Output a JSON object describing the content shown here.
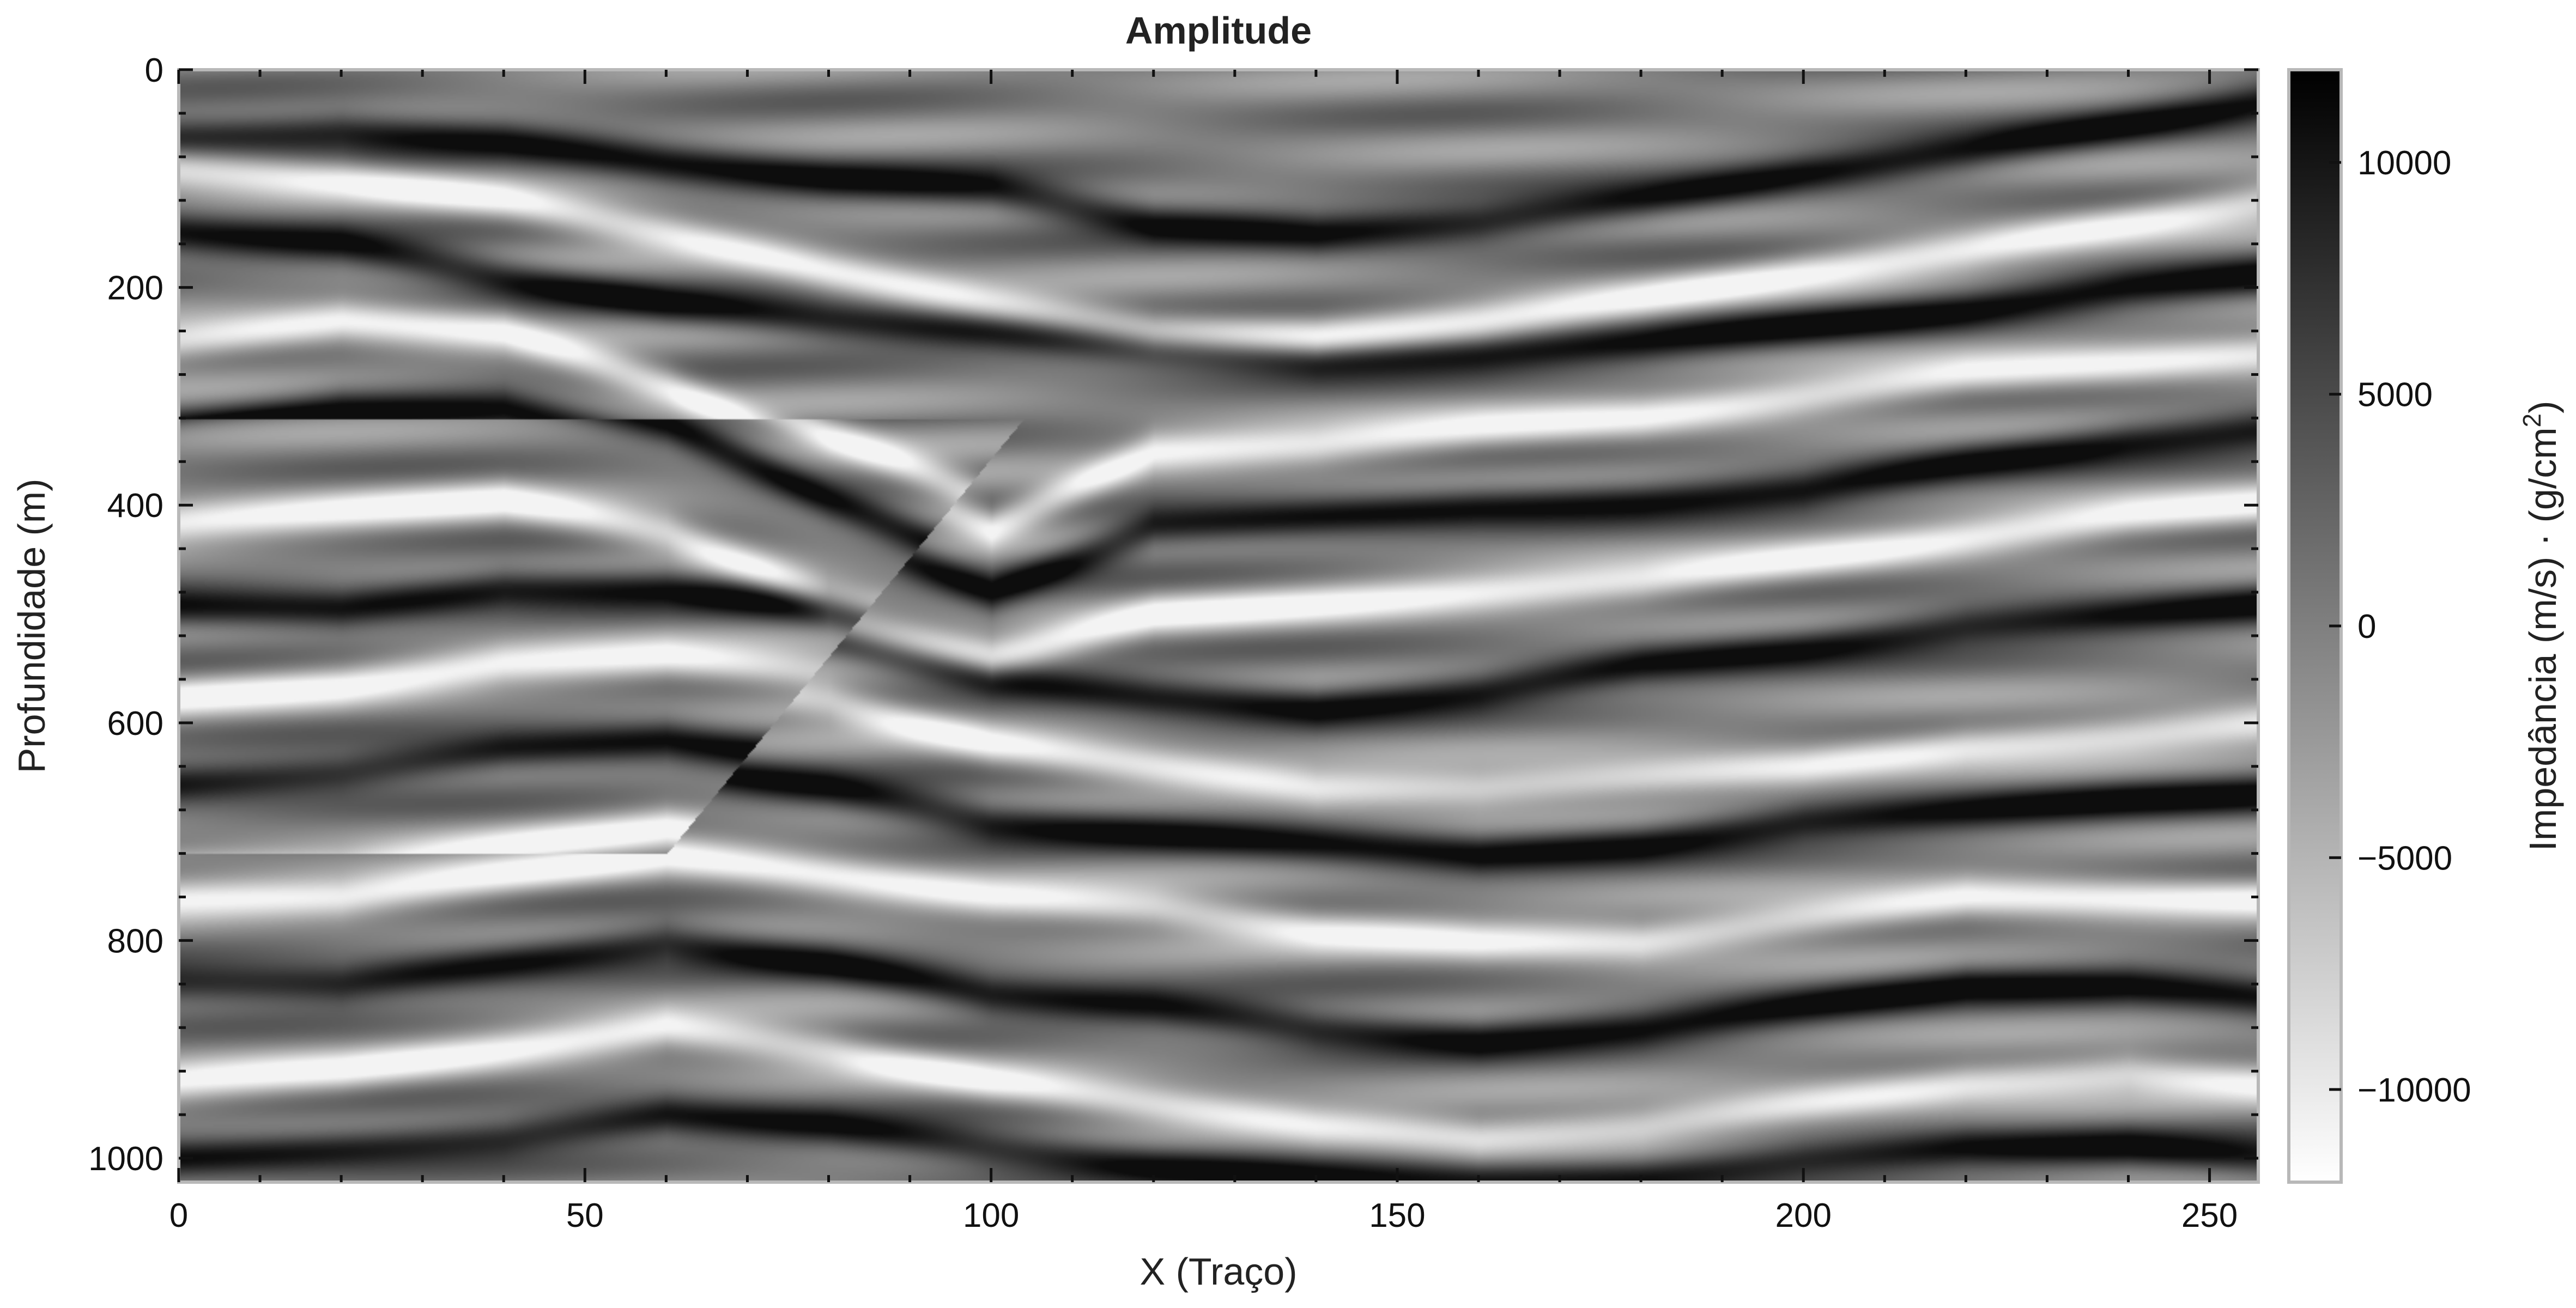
{
  "chart_data": {
    "type": "heatmap",
    "title": "Amplitude",
    "xlabel": "X (Traço)",
    "ylabel": "Profundidade (m)",
    "colorbar_label_main": "Impedância (m/s) · (g/cm",
    "colorbar_label_sup": "2",
    "colorbar_label_close": ")",
    "xlim": [
      0,
      256
    ],
    "ylim": [
      1022,
      0
    ],
    "x_ticks": [
      0,
      50,
      100,
      150,
      200,
      250
    ],
    "y_ticks": [
      0,
      200,
      400,
      600,
      800,
      1000
    ],
    "colorbar_range": [
      -12000,
      12000
    ],
    "colorbar_ticks": [
      10000,
      5000,
      0,
      -5000,
      -10000
    ],
    "colorbar_tick_labels": [
      "10000",
      "5000",
      "0",
      "−5000",
      "−10000"
    ],
    "colormap": "greys (white = low, black = high)",
    "colormap_low_color": "#ffffff",
    "colormap_high_color": "#000000",
    "grid": false,
    "horizons": [
      {
        "y": [
          60,
          55,
          65,
          85,
          100,
          110,
          140,
          150,
          140,
          120,
          95,
          75,
          50,
          30
        ],
        "polarity": 1
      },
      {
        "y": [
          90,
          100,
          120,
          150,
          185,
          215,
          240,
          245,
          230,
          210,
          185,
          165,
          140,
          120
        ],
        "polarity": -1
      },
      {
        "y": [
          150,
          160,
          190,
          215,
          230,
          240,
          255,
          265,
          260,
          250,
          235,
          220,
          200,
          190
        ],
        "polarity": 1
      },
      {
        "y": [
          250,
          230,
          240,
          290,
          360,
          420,
          350,
          345,
          330,
          320,
          300,
          280,
          270,
          260
        ],
        "polarity": -1
      },
      {
        "y": [
          330,
          310,
          310,
          350,
          420,
          480,
          420,
          410,
          400,
          395,
          385,
          360,
          340,
          330
        ],
        "polarity": 1
      },
      {
        "y": [
          440,
          430,
          420,
          450,
          510,
          540,
          500,
          490,
          480,
          470,
          450,
          430,
          410,
          400
        ],
        "polarity": -1
      },
      {
        "y": [
          520,
          520,
          500,
          500,
          520,
          560,
          575,
          585,
          570,
          545,
          530,
          510,
          500,
          490
        ],
        "polarity": 1
      },
      {
        "y": [
          600,
          590,
          570,
          565,
          580,
          620,
          640,
          660,
          660,
          650,
          640,
          620,
          610,
          600
        ],
        "polarity": -1
      },
      {
        "y": [
          680,
          670,
          650,
          640,
          660,
          690,
          700,
          710,
          720,
          710,
          690,
          680,
          670,
          665
        ],
        "polarity": 1
      },
      {
        "y": [
          760,
          760,
          740,
          720,
          740,
          760,
          770,
          790,
          800,
          800,
          780,
          760,
          760,
          760
        ],
        "polarity": -1
      },
      {
        "y": [
          840,
          840,
          820,
          800,
          820,
          850,
          860,
          880,
          890,
          880,
          860,
          840,
          840,
          850
        ],
        "polarity": 1
      },
      {
        "y": [
          930,
          920,
          900,
          880,
          900,
          930,
          950,
          970,
          980,
          970,
          950,
          930,
          920,
          930
        ],
        "polarity": -1
      },
      {
        "y": [
          1000,
          990,
          980,
          960,
          970,
          990,
          1005,
          1015,
          1020,
          1015,
          1000,
          990,
          990,
          1000
        ],
        "polarity": 1
      }
    ],
    "horizon_x": [
      0,
      20,
      40,
      60,
      80,
      100,
      120,
      140,
      160,
      180,
      200,
      220,
      240,
      256
    ],
    "fault": {
      "x": [
        104,
        60
      ],
      "y": [
        320,
        720
      ]
    }
  }
}
